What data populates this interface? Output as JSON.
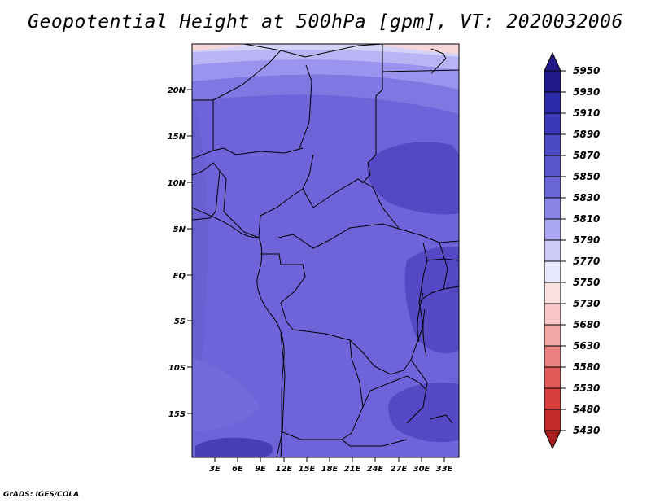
{
  "title": "Geopotential Height at 500hPa [gpm], VT: 2020032006",
  "credit": "GrADS: IGES/COLA",
  "map": {
    "lat_labels": [
      "20N",
      "15N",
      "10N",
      "5N",
      "EQ",
      "5S",
      "10S",
      "15S"
    ],
    "lon_labels": [
      "3E",
      "6E",
      "9E",
      "12E",
      "15E",
      "18E",
      "21E",
      "24E",
      "27E",
      "30E",
      "33E"
    ]
  },
  "colorbar": {
    "levels": [
      "5950",
      "5930",
      "5910",
      "5890",
      "5870",
      "5850",
      "5830",
      "5810",
      "5790",
      "5770",
      "5750",
      "5730",
      "5680",
      "5630",
      "5580",
      "5530",
      "5480",
      "5430"
    ],
    "colors": [
      "#221a8c",
      "#2b2aa8",
      "#3a3ab8",
      "#4a4ac4",
      "#5a55cc",
      "#6a66d6",
      "#8a84e6",
      "#aaa6f0",
      "#cccaf6",
      "#e8e8fc",
      "#fbe2e2",
      "#f8c6c6",
      "#f2a6a6",
      "#ea8080",
      "#e05a5a",
      "#d63c3c",
      "#c22a2a",
      "#a81c1c"
    ]
  }
}
